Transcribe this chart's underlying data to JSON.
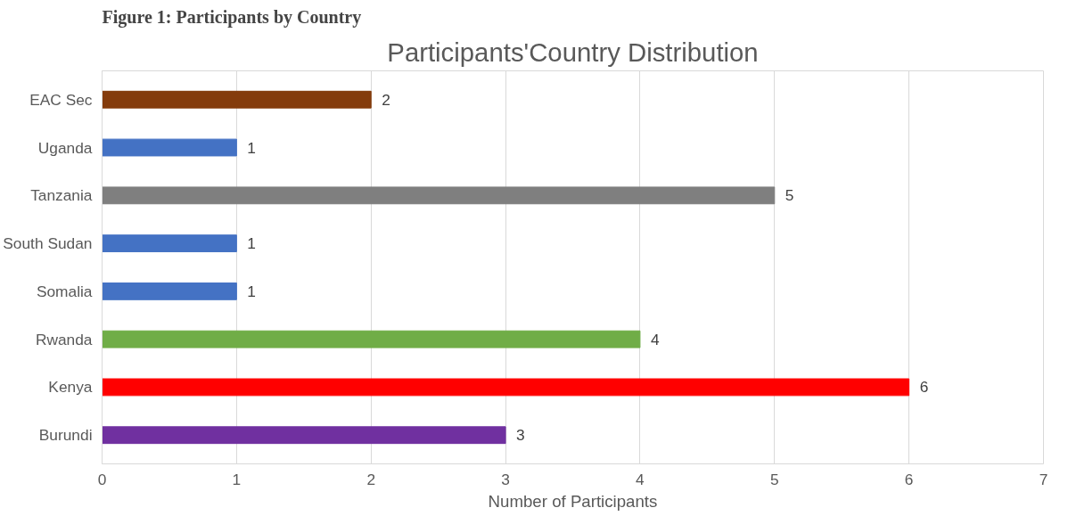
{
  "chart_data": {
    "type": "bar",
    "orientation": "horizontal",
    "title": "Participants'Country Distribution",
    "xlabel": "Number of Participants",
    "annotations": [
      "Figure 1: Participants by Country"
    ],
    "categories": [
      "EAC Sec",
      "Uganda",
      "Tanzania",
      "South Sudan",
      "Somalia",
      "Rwanda",
      "Kenya",
      "Burundi"
    ],
    "values": [
      2,
      1,
      5,
      1,
      1,
      4,
      6,
      3
    ],
    "colors": [
      "#843c0c",
      "#4472c4",
      "#7f7f7f",
      "#4472c4",
      "#4472c4",
      "#70ad47",
      "#ff0000",
      "#7030a0"
    ],
    "xlim": [
      0,
      7
    ],
    "xticks": [
      0,
      1,
      2,
      3,
      4,
      5,
      6,
      7
    ],
    "grid": "x",
    "data_labels": true
  }
}
